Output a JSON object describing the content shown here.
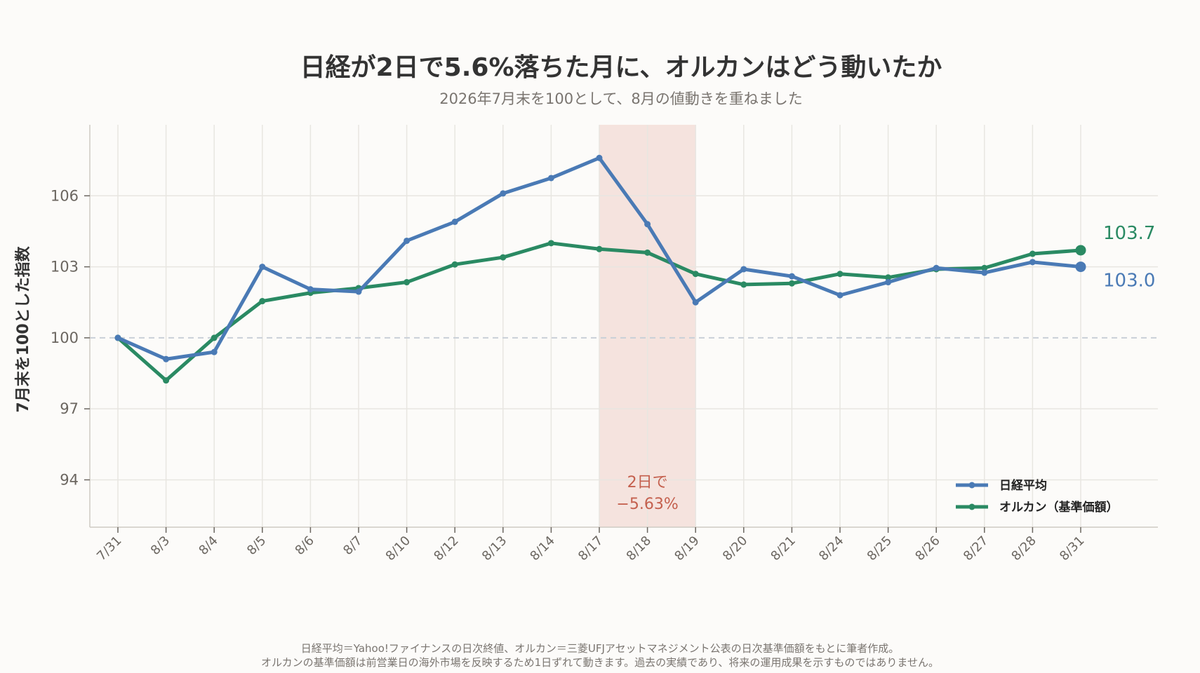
{
  "header": {
    "title": "日経が2日で5.6%落ちた月に、オルカンはどう動いたか",
    "subtitle": "2026年7月末を100として、8月の値動きを重ねました"
  },
  "footer": {
    "line1": "日経平均＝Yahoo!ファイナンスの日次終値、オルカン＝三菱UFJアセットマネジメント公表の日次基準価額をもとに筆者作成。",
    "line2": "オルカンの基準価額は前営業日の海外市場を反映するため1日ずれて動きます。過去の実績であり、将来の運用成果を示すものではありません。"
  },
  "colors": {
    "nikkei": "#4a7ab5",
    "orukan": "#2a8a63",
    "shade": "#f5e3de",
    "shade_text": "#c4604e",
    "grid": "#e8e6e1",
    "baseline": "#c9d0d8"
  },
  "chart_data": {
    "type": "line",
    "title": "日経が2日で5.6%落ちた月に、オルカンはどう動いたか",
    "subtitle": "2026年7月末を100として、8月の値動きを重ねました",
    "xlabel": "",
    "ylabel": "7月末を100とした指数",
    "categories": [
      "7/31",
      "8/3",
      "8/4",
      "8/5",
      "8/6",
      "8/7",
      "8/10",
      "8/12",
      "8/13",
      "8/14",
      "8/17",
      "8/18",
      "8/19",
      "8/20",
      "8/21",
      "8/24",
      "8/25",
      "8/26",
      "8/27",
      "8/28",
      "8/31"
    ],
    "yticks": [
      94,
      97,
      100,
      103,
      106
    ],
    "ylim": [
      92,
      109
    ],
    "grid": true,
    "legend_position": "bottom-right",
    "series": [
      {
        "name": "日経平均",
        "color": "#4a7ab5",
        "values": [
          100.0,
          99.1,
          99.4,
          103.0,
          102.05,
          101.95,
          104.1,
          104.9,
          106.1,
          106.75,
          107.6,
          104.8,
          101.5,
          102.9,
          102.6,
          101.8,
          102.35,
          102.95,
          102.75,
          103.2,
          103.0
        ],
        "end_label": "103.0"
      },
      {
        "name": "オルカン（基準価額）",
        "color": "#2a8a63",
        "values": [
          100.0,
          98.2,
          100.0,
          101.55,
          101.9,
          102.1,
          102.35,
          103.1,
          103.4,
          104.0,
          103.75,
          103.6,
          102.7,
          102.25,
          102.3,
          102.7,
          102.55,
          102.9,
          102.95,
          103.55,
          103.7
        ],
        "end_label": "103.7"
      }
    ],
    "baseline": 100,
    "annotation": {
      "shade_from": "8/17",
      "shade_to": "8/19",
      "line1": "2日で",
      "line2": "−5.63%"
    }
  }
}
